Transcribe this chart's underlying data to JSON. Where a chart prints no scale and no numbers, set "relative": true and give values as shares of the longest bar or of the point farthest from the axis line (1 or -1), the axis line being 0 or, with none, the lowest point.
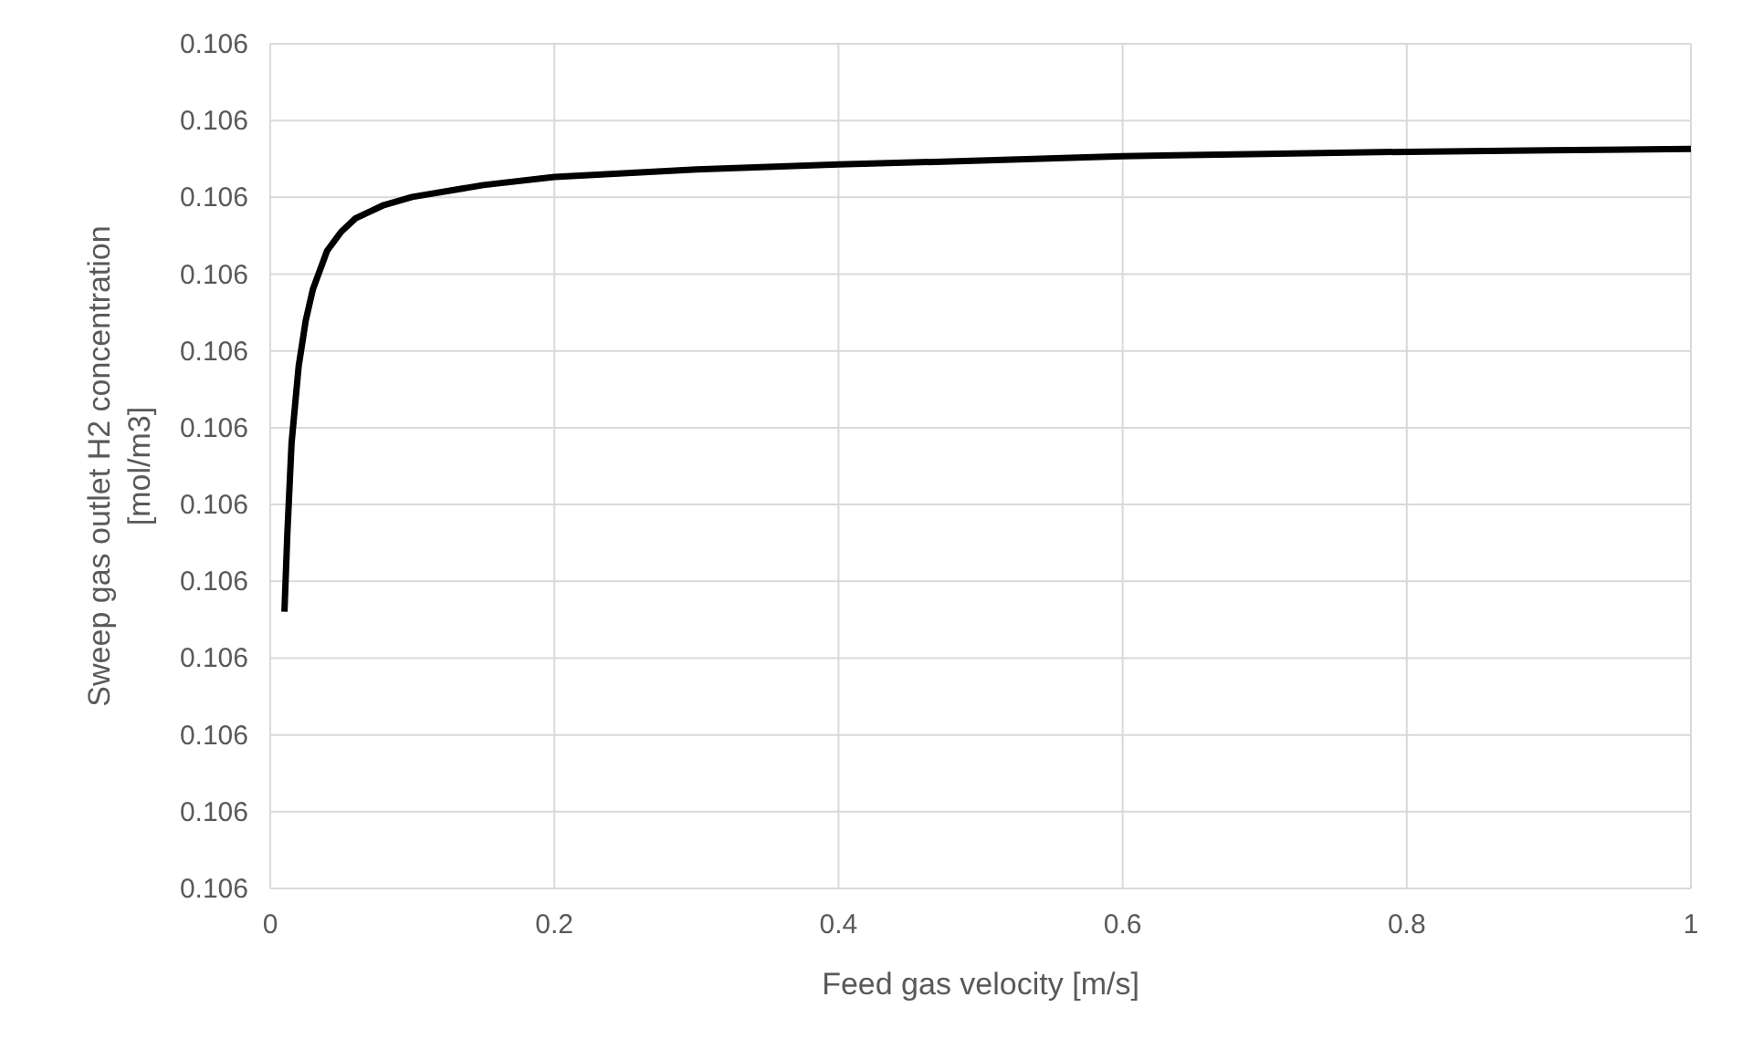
{
  "chart_data": {
    "type": "line",
    "relative": true,
    "xlabel": "Feed gas velocity [m/s]",
    "ylabel": "Sweep gas outlet H2 concentration [mol/m3]",
    "annotations": [
      "0.106",
      "0.106",
      "0.106",
      "0.106",
      "0.106",
      "0.106",
      "0.106",
      "0.106",
      "0.106",
      "0.106",
      "0.106",
      "0.106"
    ],
    "x": [
      0.01,
      0.012,
      0.015,
      0.02,
      0.025,
      0.03,
      0.04,
      0.05,
      0.06,
      0.08,
      0.1,
      0.15,
      0.2,
      0.3,
      0.4,
      0.5,
      0.6,
      0.7,
      0.8,
      0.9,
      1.0
    ],
    "series": [
      {
        "color": "#000000",
        "values": [
          0.374,
          0.478,
          0.602,
          0.706,
          0.768,
          0.81,
          0.862,
          0.888,
          0.906,
          0.924,
          0.935,
          0.951,
          0.962,
          0.972,
          0.979,
          0.984,
          0.99,
          0.993,
          0.996,
          0.998,
          1
        ]
      }
    ],
    "xlim": [
      0,
      1
    ],
    "xticks": [
      0,
      0.2,
      0.4,
      0.6,
      0.8,
      1
    ],
    "grid": true,
    "marker": "none",
    "line_style": "solid"
  }
}
